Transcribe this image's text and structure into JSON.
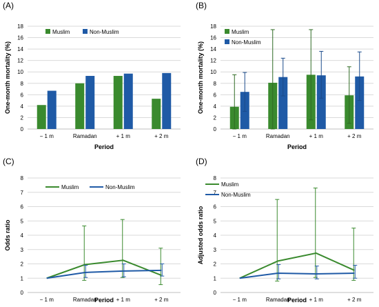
{
  "colors": {
    "muslim": "#3a8a2e",
    "non_muslim": "#1f5aa6",
    "grid": "#d9d9d9",
    "axis": "#bfbfbf",
    "text": "#000000"
  },
  "chart_data": [
    {
      "panel": "(A)",
      "type": "bar",
      "categories": [
        "− 1 m",
        "Ramadan",
        "+ 1 m",
        "+ 2 m"
      ],
      "series": [
        {
          "name": "Muslim",
          "values": [
            4.2,
            8.0,
            9.3,
            5.3
          ]
        },
        {
          "name": "Non-Muslim",
          "values": [
            6.7,
            9.3,
            9.7,
            9.8
          ]
        }
      ],
      "xlabel": "Period",
      "ylabel": "One-month mortality (%)",
      "ylim": [
        0,
        18
      ],
      "yticks": [
        "0",
        "2",
        "4",
        "6",
        "8",
        "10",
        "12",
        "14",
        "16",
        "18"
      ],
      "grid": true,
      "legend": "top-left"
    },
    {
      "panel": "(B)",
      "type": "bar",
      "categories": [
        "− 1 m",
        "Ramadan",
        "+ 1 m",
        "+ 2 m"
      ],
      "series": [
        {
          "name": "Muslim",
          "values": [
            3.9,
            8.1,
            9.5,
            5.9
          ],
          "err_low": [
            0,
            0,
            1.6,
            1.0
          ],
          "err_high": [
            9.5,
            17.4,
            17.4,
            10.9
          ]
        },
        {
          "name": "Non-Muslim",
          "values": [
            6.5,
            9.1,
            9.4,
            9.2
          ],
          "err_low": [
            3.1,
            5.8,
            5.4,
            5.0
          ],
          "err_high": [
            9.9,
            12.4,
            13.6,
            13.5
          ]
        }
      ],
      "xlabel": "Period",
      "ylabel": "One-month mortality (%)",
      "ylim": [
        0,
        18
      ],
      "yticks": [
        "0",
        "2",
        "4",
        "6",
        "8",
        "10",
        "12",
        "14",
        "16",
        "18"
      ],
      "grid": true,
      "legend": "top-left (vertical)"
    },
    {
      "panel": "(C)",
      "type": "line",
      "categories": [
        "− 1 m",
        "Ramadan",
        "+ 1 m",
        "+ 2 m"
      ],
      "series": [
        {
          "name": "Muslim",
          "values": [
            1.0,
            1.95,
            2.25,
            1.2
          ],
          "err_low": [
            1.0,
            0.85,
            1.05,
            0.55
          ],
          "err_high": [
            1.0,
            4.65,
            5.1,
            3.1
          ]
        },
        {
          "name": "Non-Muslim",
          "values": [
            1.0,
            1.4,
            1.5,
            1.55
          ],
          "err_low": [
            1.0,
            1.05,
            1.1,
            1.15
          ],
          "err_high": [
            1.0,
            1.9,
            2.0,
            2.0
          ]
        }
      ],
      "xlabel": "Period",
      "ylabel": "Odds ratio",
      "ylim": [
        0,
        8
      ],
      "yticks": [
        "0",
        "1",
        "2",
        "3",
        "4",
        "5",
        "6",
        "7",
        "8"
      ],
      "grid": true,
      "legend": "top"
    },
    {
      "panel": "(D)",
      "type": "line",
      "categories": [
        "− 1 m",
        "Ramadan",
        "+ 1 m",
        "+ 2 m"
      ],
      "series": [
        {
          "name": "Muslim",
          "values": [
            1.0,
            2.2,
            2.75,
            1.55
          ],
          "err_low": [
            1.0,
            0.8,
            1.05,
            0.85
          ],
          "err_high": [
            1.0,
            6.5,
            7.3,
            4.5
          ]
        },
        {
          "name": "Non-Muslim",
          "values": [
            1.0,
            1.35,
            1.3,
            1.35
          ],
          "err_low": [
            1.0,
            0.95,
            0.95,
            1.0
          ],
          "err_high": [
            1.0,
            1.95,
            1.85,
            1.9
          ]
        }
      ],
      "xlabel": "Period",
      "ylabel": "Adjusted odds ratio",
      "ylim": [
        0,
        8
      ],
      "yticks": [
        "0",
        "1",
        "2",
        "3",
        "4",
        "5",
        "6",
        "7",
        "8"
      ],
      "grid": true,
      "legend": "top-left (vertical)"
    }
  ]
}
